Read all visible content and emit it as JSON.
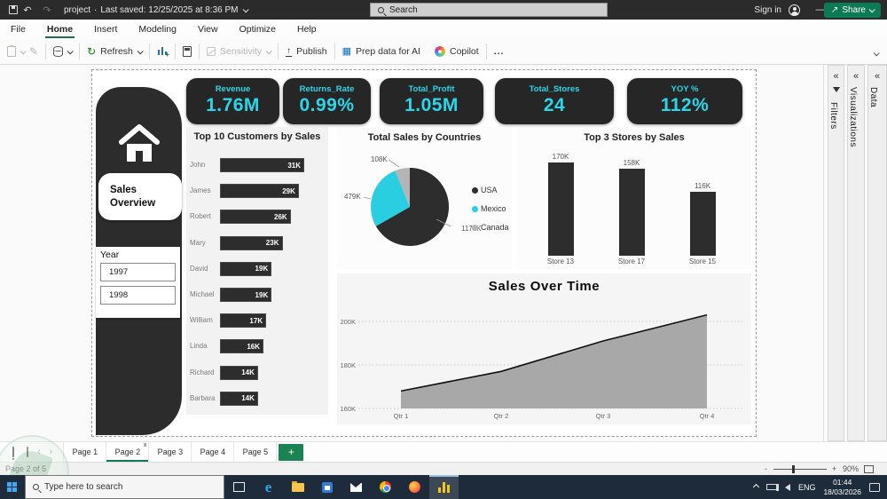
{
  "titlebar": {
    "project_name": "project",
    "separator": "·",
    "last_saved": "Last saved: 12/25/2025 at 8:36 PM",
    "search_placeholder": "Search",
    "sign_in": "Sign in",
    "minimize": "—",
    "close": "×"
  },
  "menubar": {
    "items": [
      "File",
      "Home",
      "Insert",
      "Modeling",
      "View",
      "Optimize",
      "Help"
    ],
    "active": "Home"
  },
  "ribbon": {
    "refresh_label": "Refresh",
    "sensitivity_label": "Sensitivity",
    "publish_label": "Publish",
    "prep_data_label": "Prep data for AI",
    "copilot_label": "Copilot",
    "more_label": "...",
    "share_label": "Share"
  },
  "panes": {
    "filters": "Filters",
    "visualizations": "Visualizations",
    "data": "Data",
    "collapse_glyph": "«"
  },
  "dashboard": {
    "nav_label": "Sales Overview",
    "slicer": {
      "title": "Year",
      "options": [
        "1997",
        "1998"
      ]
    },
    "kpis": [
      {
        "label": "Revenue",
        "value": "1.76M"
      },
      {
        "label": "Returns_Rate",
        "value": "0.99%"
      },
      {
        "label": "Total_Profit",
        "value": "1.05M"
      },
      {
        "label": "Total_Stores",
        "value": "24"
      },
      {
        "label": "YOY %",
        "value": "112%"
      }
    ]
  },
  "chart_data": [
    {
      "type": "bar",
      "orientation": "horizontal",
      "title": "Top 10 Customers by Sales",
      "categories": [
        "John",
        "James",
        "Robert",
        "Mary",
        "David",
        "Michael",
        "William",
        "Linda",
        "Richard",
        "Barbara"
      ],
      "values": [
        31,
        29,
        26,
        23,
        19,
        19,
        17,
        16,
        14,
        14
      ],
      "labels": [
        "31K",
        "29K",
        "26K",
        "23K",
        "19K",
        "19K",
        "17K",
        "16K",
        "14K",
        "14K"
      ],
      "bar_color": "#2d2d2d"
    },
    {
      "type": "pie",
      "title": "Total Sales by Countries",
      "categories": [
        "USA",
        "Mexico",
        "Canada"
      ],
      "values": [
        1178,
        479,
        108
      ],
      "labels": [
        "1178K",
        "479K",
        "108K"
      ],
      "colors": [
        "#2d2d2d",
        "#29cfe0",
        "#b5b5b5"
      ],
      "legend_position": "right"
    },
    {
      "type": "bar",
      "orientation": "vertical",
      "title": "Top 3 Stores by Sales",
      "categories": [
        "Store 13",
        "Store 17",
        "Store 15"
      ],
      "values": [
        170,
        158,
        116
      ],
      "labels": [
        "170K",
        "158K",
        "116K"
      ],
      "bar_color": "#2d2d2d"
    },
    {
      "type": "area",
      "title": "Sales Over Time",
      "x": [
        "Qtr 1",
        "Qtr 2",
        "Qtr 3",
        "Qtr 4"
      ],
      "values": [
        168,
        177,
        191,
        203
      ],
      "ylim": [
        160,
        210
      ],
      "yticks": [
        160,
        180,
        200
      ],
      "ytick_labels": [
        "160K",
        "180K",
        "200K"
      ],
      "grid": true,
      "fill_color": "#a8a8a8",
      "line_color": "#111111"
    }
  ],
  "pagebar": {
    "tabs": [
      "Page 1",
      "Page 2",
      "Page 3",
      "Page 4",
      "Page 5"
    ],
    "active": "Page 2",
    "close_glyph": "x",
    "add_label": "+"
  },
  "statusbar": {
    "page_status": "Page 2 of 5",
    "zoom_minus": "-",
    "zoom_plus": "+",
    "zoom": "90%"
  },
  "taskbar": {
    "search_placeholder": "Type here to search",
    "language": "ENG",
    "time": "01:44",
    "date": "18/03/2026"
  }
}
